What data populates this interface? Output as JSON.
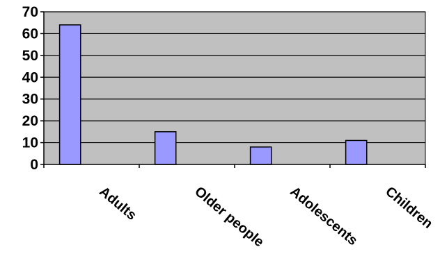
{
  "chart_data": {
    "type": "bar",
    "categories": [
      "Adults",
      "Older people",
      "Adolescents",
      "Children"
    ],
    "values": [
      64,
      15,
      8,
      11
    ],
    "ylim": [
      0,
      70
    ],
    "yticks": [
      0,
      10,
      20,
      30,
      40,
      50,
      60,
      70
    ],
    "grid": true,
    "legend": "none",
    "colors": {
      "bar_fill": "#9999ff",
      "bar_stroke": "#000000",
      "plot_background": "#c0c0c0",
      "gridline": "#000000"
    }
  }
}
